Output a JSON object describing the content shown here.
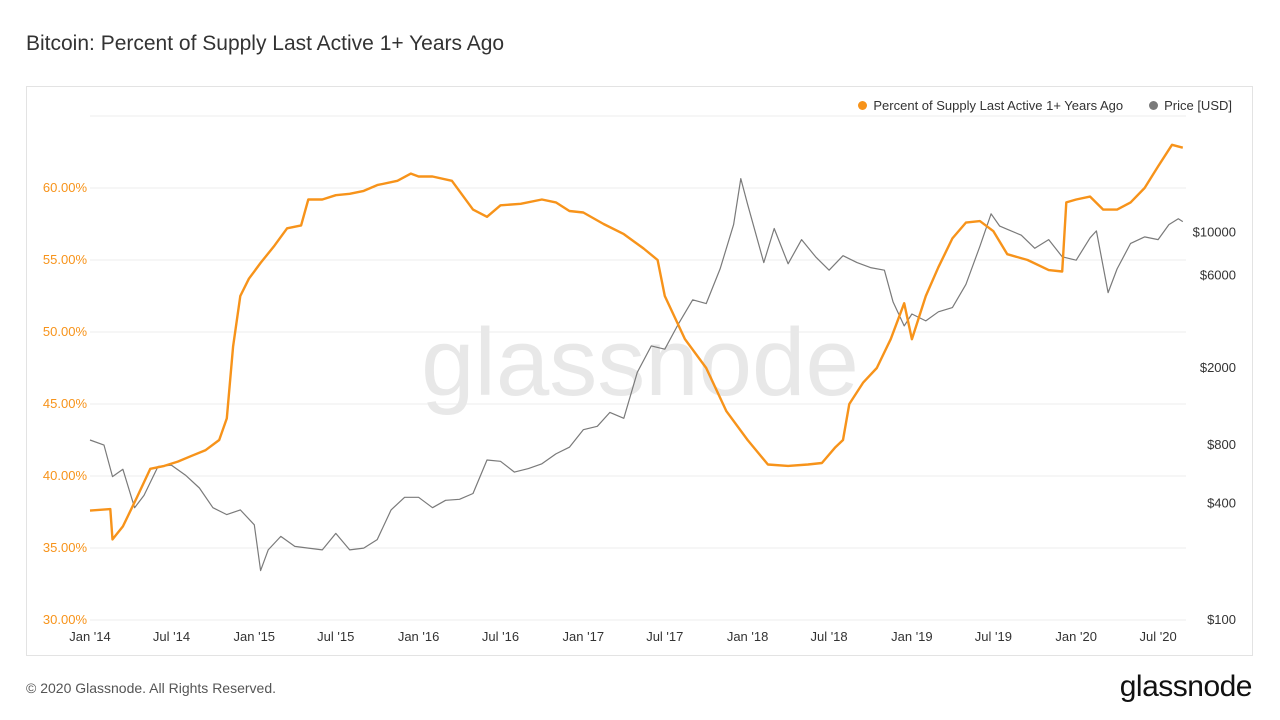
{
  "page": {
    "title": "Bitcoin: Percent of Supply Last Active 1+ Years Ago",
    "footer": "© 2020 Glassnode. All Rights Reserved.",
    "brand": "glassnode",
    "watermark": "glassnode"
  },
  "chart_data": {
    "type": "line",
    "title": "Bitcoin: Percent of Supply Last Active 1+ Years Ago",
    "legend": {
      "placement": "top-right"
    },
    "grid": true,
    "colors": {
      "supply": "#f7931a",
      "price": "#7a7a7a"
    },
    "x_ticks": [
      "Jan '14",
      "Jul '14",
      "Jan '15",
      "Jul '15",
      "Jan '16",
      "Jul '16",
      "Jan '17",
      "Jul '17",
      "Jan '18",
      "Jul '18",
      "Jan '19",
      "Jul '19",
      "Jan '20",
      "Jul '20"
    ],
    "x_tick_dates": [
      "2014-01-01",
      "2014-07-01",
      "2015-01-01",
      "2015-07-01",
      "2016-01-01",
      "2016-07-01",
      "2017-01-01",
      "2017-07-01",
      "2018-01-01",
      "2018-07-01",
      "2019-01-01",
      "2019-07-01",
      "2020-01-01",
      "2020-07-01"
    ],
    "x_range": [
      "2014-01-01",
      "2020-09-01"
    ],
    "y_left": {
      "ticks": [
        "30.00%",
        "35.00%",
        "40.00%",
        "45.00%",
        "50.00%",
        "55.00%",
        "60.00%"
      ],
      "tick_values": [
        30,
        35,
        40,
        45,
        50,
        55,
        60
      ],
      "range": [
        30,
        65
      ]
    },
    "y_right": {
      "scale": "log",
      "ticks": [
        "$100",
        "$400",
        "$800",
        "$2000",
        "$6000",
        "$10000"
      ],
      "tick_values": [
        100,
        400,
        800,
        2000,
        6000,
        10000
      ],
      "range": [
        100,
        40000
      ]
    },
    "series": [
      {
        "name": "Percent of Supply Last Active 1+ Years Ago",
        "axis": "left",
        "points": [
          [
            "2014-01-01",
            37.6
          ],
          [
            "2014-02-15",
            37.7
          ],
          [
            "2014-02-20",
            35.6
          ],
          [
            "2014-03-15",
            36.5
          ],
          [
            "2014-04-15",
            38.5
          ],
          [
            "2014-05-15",
            40.5
          ],
          [
            "2014-06-15",
            40.7
          ],
          [
            "2014-07-15",
            41.0
          ],
          [
            "2014-08-15",
            41.4
          ],
          [
            "2014-09-15",
            41.8
          ],
          [
            "2014-10-15",
            42.5
          ],
          [
            "2014-11-01",
            44.0
          ],
          [
            "2014-11-15",
            49.0
          ],
          [
            "2014-12-01",
            52.5
          ],
          [
            "2014-12-20",
            53.7
          ],
          [
            "2015-01-15",
            54.8
          ],
          [
            "2015-02-15",
            56.0
          ],
          [
            "2015-03-15",
            57.2
          ],
          [
            "2015-04-15",
            57.4
          ],
          [
            "2015-05-01",
            59.2
          ],
          [
            "2015-06-01",
            59.2
          ],
          [
            "2015-07-01",
            59.5
          ],
          [
            "2015-08-01",
            59.6
          ],
          [
            "2015-09-01",
            59.8
          ],
          [
            "2015-10-01",
            60.2
          ],
          [
            "2015-11-15",
            60.5
          ],
          [
            "2015-12-15",
            61.0
          ],
          [
            "2016-01-01",
            60.8
          ],
          [
            "2016-02-01",
            60.8
          ],
          [
            "2016-03-15",
            60.5
          ],
          [
            "2016-05-01",
            58.5
          ],
          [
            "2016-06-01",
            58.0
          ],
          [
            "2016-07-01",
            58.8
          ],
          [
            "2016-08-15",
            58.9
          ],
          [
            "2016-10-01",
            59.2
          ],
          [
            "2016-11-01",
            59.0
          ],
          [
            "2016-12-01",
            58.4
          ],
          [
            "2017-01-01",
            58.3
          ],
          [
            "2017-02-15",
            57.5
          ],
          [
            "2017-04-01",
            56.8
          ],
          [
            "2017-05-15",
            55.8
          ],
          [
            "2017-06-15",
            55.0
          ],
          [
            "2017-07-01",
            52.5
          ],
          [
            "2017-08-15",
            49.5
          ],
          [
            "2017-10-01",
            47.5
          ],
          [
            "2017-11-15",
            44.5
          ],
          [
            "2018-01-01",
            42.5
          ],
          [
            "2018-02-15",
            40.8
          ],
          [
            "2018-04-01",
            40.7
          ],
          [
            "2018-05-15",
            40.8
          ],
          [
            "2018-06-15",
            40.9
          ],
          [
            "2018-07-15",
            42.0
          ],
          [
            "2018-08-01",
            42.5
          ],
          [
            "2018-08-15",
            45.0
          ],
          [
            "2018-09-15",
            46.5
          ],
          [
            "2018-10-15",
            47.5
          ],
          [
            "2018-11-15",
            49.5
          ],
          [
            "2018-12-15",
            52.0
          ],
          [
            "2019-01-01",
            49.5
          ],
          [
            "2019-02-01",
            52.5
          ],
          [
            "2019-03-01",
            54.5
          ],
          [
            "2019-04-01",
            56.5
          ],
          [
            "2019-05-01",
            57.6
          ],
          [
            "2019-06-01",
            57.7
          ],
          [
            "2019-07-01",
            57.0
          ],
          [
            "2019-08-01",
            55.4
          ],
          [
            "2019-09-15",
            55.0
          ],
          [
            "2019-11-01",
            54.3
          ],
          [
            "2019-12-01",
            54.2
          ],
          [
            "2019-12-10",
            59.0
          ],
          [
            "2020-01-01",
            59.2
          ],
          [
            "2020-02-01",
            59.4
          ],
          [
            "2020-03-01",
            58.5
          ],
          [
            "2020-04-01",
            58.5
          ],
          [
            "2020-05-01",
            59.0
          ],
          [
            "2020-06-01",
            60.0
          ],
          [
            "2020-07-01",
            61.5
          ],
          [
            "2020-08-01",
            63.0
          ],
          [
            "2020-08-25",
            62.8
          ]
        ]
      },
      {
        "name": "Price [USD]",
        "axis": "right",
        "points": [
          [
            "2014-01-01",
            850
          ],
          [
            "2014-02-01",
            800
          ],
          [
            "2014-02-20",
            550
          ],
          [
            "2014-03-15",
            600
          ],
          [
            "2014-04-10",
            380
          ],
          [
            "2014-05-01",
            440
          ],
          [
            "2014-06-01",
            620
          ],
          [
            "2014-07-01",
            630
          ],
          [
            "2014-08-01",
            560
          ],
          [
            "2014-09-01",
            480
          ],
          [
            "2014-10-01",
            380
          ],
          [
            "2014-11-01",
            350
          ],
          [
            "2014-12-01",
            370
          ],
          [
            "2015-01-01",
            310
          ],
          [
            "2015-01-15",
            180
          ],
          [
            "2015-02-01",
            230
          ],
          [
            "2015-03-01",
            270
          ],
          [
            "2015-04-01",
            240
          ],
          [
            "2015-05-01",
            235
          ],
          [
            "2015-06-01",
            230
          ],
          [
            "2015-07-01",
            280
          ],
          [
            "2015-08-01",
            230
          ],
          [
            "2015-09-01",
            235
          ],
          [
            "2015-10-01",
            260
          ],
          [
            "2015-11-01",
            370
          ],
          [
            "2015-12-01",
            430
          ],
          [
            "2016-01-01",
            430
          ],
          [
            "2016-02-01",
            380
          ],
          [
            "2016-03-01",
            415
          ],
          [
            "2016-04-01",
            420
          ],
          [
            "2016-05-01",
            450
          ],
          [
            "2016-06-01",
            670
          ],
          [
            "2016-07-01",
            660
          ],
          [
            "2016-08-01",
            580
          ],
          [
            "2016-09-01",
            605
          ],
          [
            "2016-10-01",
            640
          ],
          [
            "2016-11-01",
            720
          ],
          [
            "2016-12-01",
            780
          ],
          [
            "2017-01-01",
            960
          ],
          [
            "2017-02-01",
            1000
          ],
          [
            "2017-03-01",
            1180
          ],
          [
            "2017-04-01",
            1100
          ],
          [
            "2017-05-01",
            1900
          ],
          [
            "2017-06-01",
            2600
          ],
          [
            "2017-07-01",
            2500
          ],
          [
            "2017-08-01",
            3400
          ],
          [
            "2017-09-01",
            4500
          ],
          [
            "2017-10-01",
            4300
          ],
          [
            "2017-11-01",
            6500
          ],
          [
            "2017-12-01",
            11000
          ],
          [
            "2017-12-17",
            19000
          ],
          [
            "2018-01-01",
            14000
          ],
          [
            "2018-02-06",
            7000
          ],
          [
            "2018-03-01",
            10500
          ],
          [
            "2018-04-01",
            6900
          ],
          [
            "2018-05-01",
            9200
          ],
          [
            "2018-06-01",
            7500
          ],
          [
            "2018-07-01",
            6400
          ],
          [
            "2018-08-01",
            7600
          ],
          [
            "2018-09-01",
            7000
          ],
          [
            "2018-10-01",
            6600
          ],
          [
            "2018-11-01",
            6400
          ],
          [
            "2018-11-20",
            4400
          ],
          [
            "2018-12-15",
            3300
          ],
          [
            "2019-01-01",
            3800
          ],
          [
            "2019-02-01",
            3500
          ],
          [
            "2019-03-01",
            3900
          ],
          [
            "2019-04-01",
            4100
          ],
          [
            "2019-05-01",
            5400
          ],
          [
            "2019-06-01",
            8500
          ],
          [
            "2019-06-26",
            12500
          ],
          [
            "2019-07-15",
            10800
          ],
          [
            "2019-08-01",
            10400
          ],
          [
            "2019-09-01",
            9700
          ],
          [
            "2019-10-01",
            8300
          ],
          [
            "2019-11-01",
            9200
          ],
          [
            "2019-12-01",
            7500
          ],
          [
            "2020-01-01",
            7200
          ],
          [
            "2020-02-01",
            9400
          ],
          [
            "2020-02-15",
            10200
          ],
          [
            "2020-03-12",
            4900
          ],
          [
            "2020-04-01",
            6500
          ],
          [
            "2020-05-01",
            8800
          ],
          [
            "2020-06-01",
            9500
          ],
          [
            "2020-07-01",
            9200
          ],
          [
            "2020-07-25",
            11000
          ],
          [
            "2020-08-15",
            11800
          ],
          [
            "2020-08-25",
            11400
          ]
        ]
      }
    ]
  }
}
